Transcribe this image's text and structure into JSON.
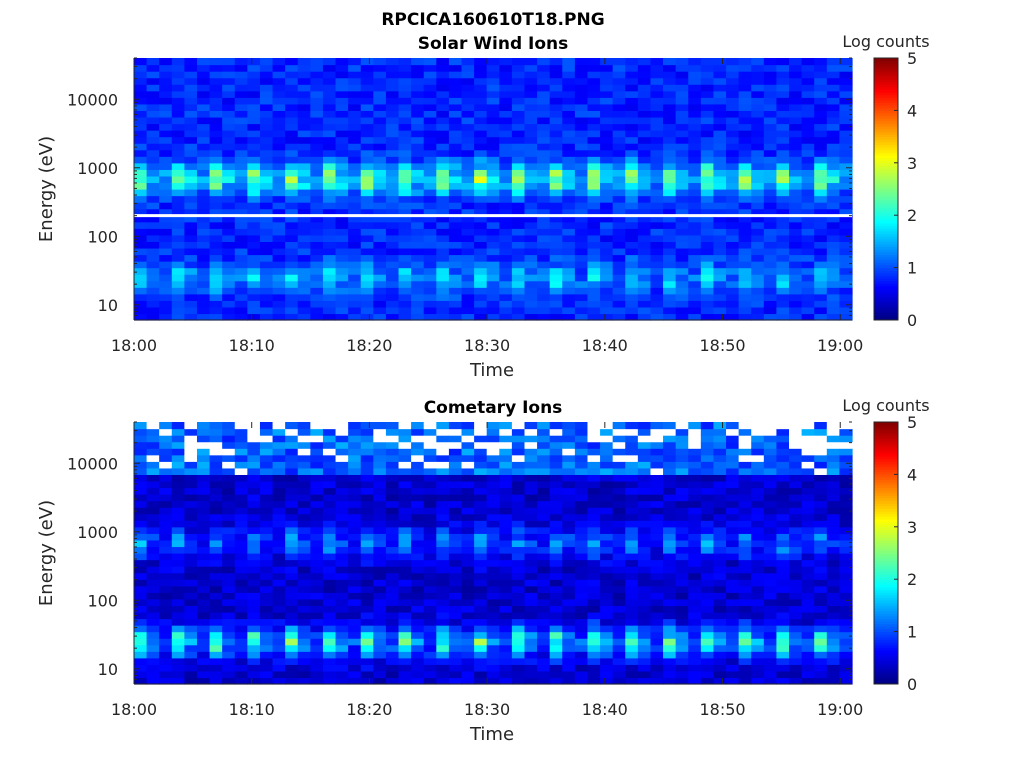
{
  "figure": {
    "suptitle": "RPCICA160610T18.PNG"
  },
  "colors": {
    "background": "#ffffff",
    "axis": "#262626",
    "title": "#000000"
  },
  "chart_data": [
    {
      "type": "heatmap",
      "title": "Solar Wind Ions",
      "xlabel": "Time",
      "ylabel": "Energy (eV)",
      "x_ticks": [
        "18:00",
        "18:10",
        "18:20",
        "18:30",
        "18:40",
        "18:50",
        "19:00"
      ],
      "y_ticks": [
        "10",
        "100",
        "1000",
        "10000"
      ],
      "y_scale": "log",
      "ylim_eV": [
        6,
        40000
      ],
      "xlim_minutes": [
        0,
        61
      ],
      "colorbar": {
        "label": "Log counts",
        "ticks": [
          "0",
          "1",
          "2",
          "3",
          "4",
          "5"
        ],
        "range": [
          0,
          5
        ],
        "colormap": "jet"
      },
      "features": {
        "time_bins": 57,
        "energy_bins": 40,
        "background_log_counts": 0.8,
        "peak_bands": [
          {
            "energy_eV": 700,
            "peak_log_counts": 2.6,
            "period_bins": 3
          },
          {
            "energy_eV": 25,
            "peak_log_counts": 1.7,
            "period_bins": 3
          }
        ],
        "white_line_energy_eV": 200
      }
    },
    {
      "type": "heatmap",
      "title": "Cometary Ions",
      "xlabel": "Time",
      "ylabel": "Energy (eV)",
      "x_ticks": [
        "18:00",
        "18:10",
        "18:20",
        "18:30",
        "18:40",
        "18:50",
        "19:00"
      ],
      "y_ticks": [
        "10",
        "100",
        "1000",
        "10000"
      ],
      "y_scale": "log",
      "ylim_eV": [
        6,
        40000
      ],
      "xlim_minutes": [
        0,
        61
      ],
      "colorbar": {
        "label": "Log counts",
        "ticks": [
          "0",
          "1",
          "2",
          "3",
          "4",
          "5"
        ],
        "range": [
          0,
          5
        ],
        "colormap": "jet"
      },
      "features": {
        "time_bins": 57,
        "energy_bins": 40,
        "background_log_counts": 0.4,
        "peak_bands": [
          {
            "energy_eV": 700,
            "peak_log_counts": 1.3,
            "period_bins": 3
          },
          {
            "energy_eV": 25,
            "peak_log_counts": 2.2,
            "period_bins": 3
          }
        ],
        "white_gaps_above_eV": 7000
      }
    }
  ]
}
